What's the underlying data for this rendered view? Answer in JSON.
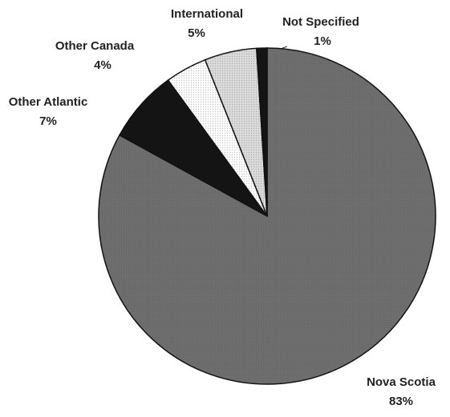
{
  "chart_data": {
    "type": "pie",
    "labels": [
      "Nova Scotia",
      "Other Atlantic",
      "Other Canada",
      "International",
      "Not Specified"
    ],
    "values": [
      83,
      7,
      4,
      5,
      1
    ],
    "value_labels": [
      "83%",
      "7%",
      "4%",
      "5%",
      "1%"
    ],
    "colors": [
      "#6e6e6e",
      "#141414",
      "#ffffff",
      "#dcdcdc",
      "#141414"
    ]
  }
}
